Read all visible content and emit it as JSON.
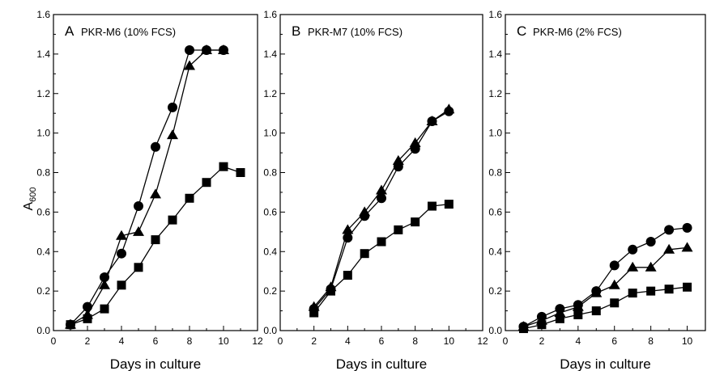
{
  "figure": {
    "y_label_main": "A",
    "y_label_sub": "600"
  },
  "chart_data": [
    {
      "type": "line",
      "panel": "A",
      "title": "PKR-M6 (10% FCS)",
      "xlabel": "Days in culture",
      "ylabel": "A600",
      "xlim": [
        0,
        12
      ],
      "ylim": [
        0,
        1.6
      ],
      "xticks": [
        "0",
        "2",
        "4",
        "6",
        "8",
        "10",
        "12"
      ],
      "yticks": [
        "0.0",
        "0.2",
        "0.4",
        "0.6",
        "0.8",
        "1.0",
        "1.2",
        "1.4",
        "1.6"
      ],
      "grid": false,
      "legend": "none",
      "series": [
        {
          "marker": "circle",
          "x": [
            1,
            2,
            3,
            4,
            5,
            6,
            7,
            8,
            9,
            10
          ],
          "y": [
            0.03,
            0.12,
            0.27,
            0.39,
            0.63,
            0.93,
            1.13,
            1.42,
            1.42,
            1.42
          ]
        },
        {
          "marker": "triangle",
          "x": [
            1,
            2,
            3,
            4,
            5,
            6,
            7,
            8,
            9,
            10
          ],
          "y": [
            0.03,
            0.08,
            0.23,
            0.48,
            0.5,
            0.69,
            0.99,
            1.34,
            1.42,
            1.42
          ]
        },
        {
          "marker": "square",
          "x": [
            1,
            2,
            3,
            4,
            5,
            6,
            7,
            8,
            9,
            10,
            11
          ],
          "y": [
            0.03,
            0.06,
            0.11,
            0.23,
            0.32,
            0.46,
            0.56,
            0.67,
            0.75,
            0.83,
            0.8
          ]
        }
      ]
    },
    {
      "type": "line",
      "panel": "B",
      "title": "PKR-M7 (10% FCS)",
      "xlabel": "Days in culture",
      "ylabel": "A600",
      "xlim": [
        0,
        12
      ],
      "ylim": [
        0,
        1.6
      ],
      "xticks": [
        "0",
        "2",
        "4",
        "6",
        "8",
        "10",
        "12"
      ],
      "yticks": [
        "0.0",
        "0.2",
        "0.4",
        "0.6",
        "0.8",
        "1.0",
        "1.2",
        "1.4",
        "1.6"
      ],
      "grid": false,
      "legend": "none",
      "series": [
        {
          "marker": "circle",
          "x": [
            2,
            3,
            4,
            5,
            6,
            7,
            8,
            9,
            10
          ],
          "y": [
            0.11,
            0.21,
            0.47,
            0.58,
            0.67,
            0.83,
            0.92,
            1.06,
            1.11
          ]
        },
        {
          "marker": "triangle",
          "x": [
            2,
            3,
            4,
            5,
            6,
            7,
            8,
            9,
            10
          ],
          "y": [
            0.12,
            0.22,
            0.51,
            0.6,
            0.71,
            0.86,
            0.95,
            1.06,
            1.12
          ]
        },
        {
          "marker": "square",
          "x": [
            2,
            3,
            4,
            5,
            6,
            7,
            8,
            9,
            10
          ],
          "y": [
            0.09,
            0.2,
            0.28,
            0.39,
            0.45,
            0.51,
            0.55,
            0.63,
            0.64
          ]
        }
      ]
    },
    {
      "type": "line",
      "panel": "C",
      "title": "PKR-M6 (2% FCS)",
      "xlabel": "Days in culture",
      "ylabel": "A600",
      "xlim": [
        0,
        11
      ],
      "ylim": [
        0,
        1.6
      ],
      "xticks": [
        "0",
        "2",
        "4",
        "6",
        "8",
        "10"
      ],
      "yticks": [
        "0.0",
        "0.2",
        "0.4",
        "0.6",
        "0.8",
        "1.0",
        "1.2",
        "1.4",
        "1.6"
      ],
      "grid": false,
      "legend": "none",
      "series": [
        {
          "marker": "circle",
          "x": [
            1,
            2,
            3,
            4,
            5,
            6,
            7,
            8,
            9,
            10
          ],
          "y": [
            0.02,
            0.07,
            0.11,
            0.13,
            0.2,
            0.33,
            0.41,
            0.45,
            0.51,
            0.52
          ]
        },
        {
          "marker": "triangle",
          "x": [
            1,
            2,
            3,
            4,
            5,
            6,
            7,
            8,
            9,
            10
          ],
          "y": [
            0.02,
            0.05,
            0.09,
            0.12,
            0.19,
            0.23,
            0.32,
            0.32,
            0.41,
            0.42
          ]
        },
        {
          "marker": "square",
          "x": [
            1,
            2,
            3,
            4,
            5,
            6,
            7,
            8,
            9,
            10
          ],
          "y": [
            0.01,
            0.03,
            0.06,
            0.08,
            0.1,
            0.14,
            0.19,
            0.2,
            0.21,
            0.22
          ]
        }
      ]
    }
  ]
}
